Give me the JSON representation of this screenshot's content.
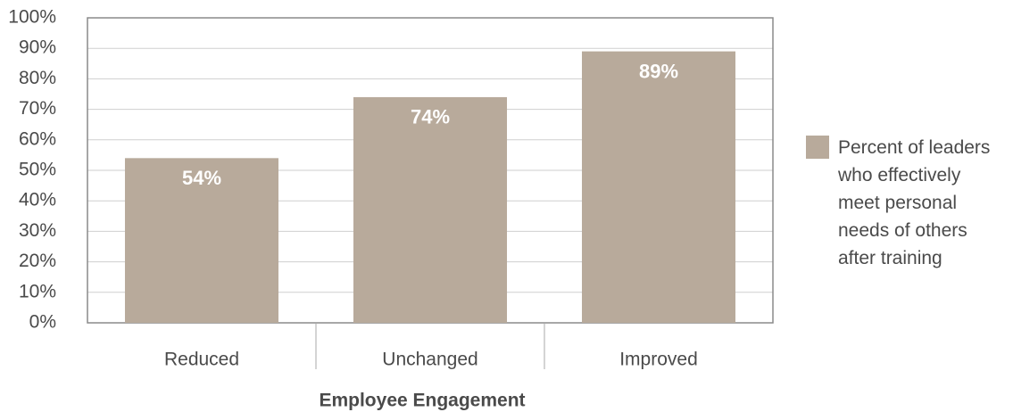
{
  "chart_data": {
    "type": "bar",
    "x_label": "Employee Engagement",
    "categories": [
      "Reduced",
      "Unchanged",
      "Improved"
    ],
    "series": [
      {
        "name": "Percent of leaders who effectively meet personal needs of others after training",
        "color": "#b8aa9b",
        "values": [
          54,
          74,
          89
        ],
        "value_labels": [
          "54%",
          "74%",
          "89%"
        ]
      }
    ],
    "ylim": [
      0,
      100
    ],
    "yticks": [
      {
        "value": 0,
        "label": "0%"
      },
      {
        "value": 10,
        "label": "10%"
      },
      {
        "value": 20,
        "label": "20%"
      },
      {
        "value": 30,
        "label": "30%"
      },
      {
        "value": 40,
        "label": "40%"
      },
      {
        "value": 50,
        "label": "50%"
      },
      {
        "value": 60,
        "label": "60%"
      },
      {
        "value": 70,
        "label": "70%"
      },
      {
        "value": 80,
        "label": "80%"
      },
      {
        "value": 90,
        "label": "90%"
      },
      {
        "value": 100,
        "label": "100%"
      }
    ],
    "grid": true,
    "legend": "right"
  }
}
